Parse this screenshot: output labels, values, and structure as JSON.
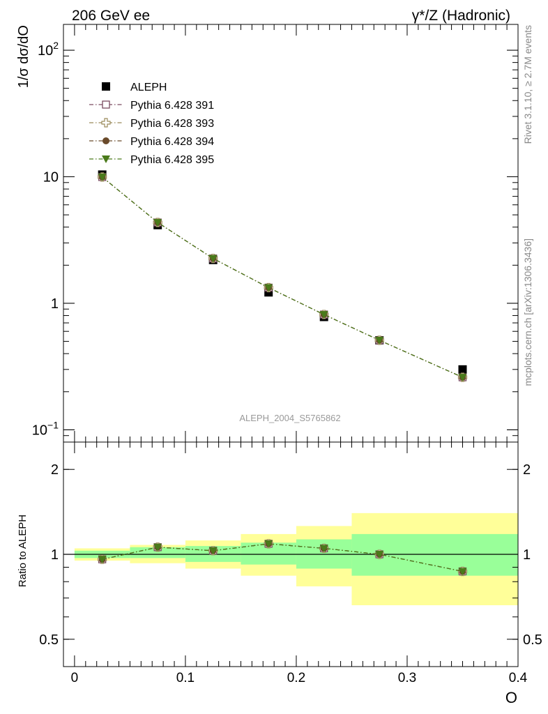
{
  "header": {
    "left": "206 GeV ee",
    "right": "γ*/Z (Hadronic)"
  },
  "side_texts": {
    "rivet": "Rivet 3.1.10, ≥ 2.7M events",
    "mcplots": "mcplots.cern.ch [arXiv:1306.3436]"
  },
  "watermark": "ALEPH_2004_S5765862",
  "colors": {
    "aleph": "#000000",
    "p391": "#7a4a5f",
    "p393": "#9a8a5a",
    "p394": "#6a4a2a",
    "p395": "#4a7a1a",
    "band_inner": "#99ff99",
    "band_outer": "#ffff99"
  },
  "chart_data": [
    {
      "type": "scatter",
      "title": "",
      "ylabel": "1/σ  dσ/dO",
      "xlabel": "",
      "yscale": "log",
      "ylim": [
        0.08,
        160
      ],
      "xlim": [
        -0.01,
        0.4
      ],
      "y_ticks": [
        {
          "value": 0.1,
          "base": "10",
          "exp": "−1"
        },
        {
          "value": 1,
          "label": "1"
        },
        {
          "value": 10,
          "label": "10"
        },
        {
          "value": 100,
          "base": "10",
          "exp": "2"
        }
      ],
      "legend_position": "top-left",
      "series": [
        {
          "name": "ALEPH",
          "marker": "square",
          "x": [
            0.025,
            0.075,
            0.125,
            0.175,
            0.225,
            0.275,
            0.35
          ],
          "y": [
            10.4,
            4.15,
            2.2,
            1.22,
            0.78,
            0.51,
            0.3
          ]
        },
        {
          "name": "Pythia 6.428 391",
          "marker": "open-square",
          "x": [
            0.025,
            0.075,
            0.125,
            0.175,
            0.225,
            0.275,
            0.35
          ],
          "y": [
            9.95,
            4.35,
            2.26,
            1.33,
            0.815,
            0.51,
            0.26
          ]
        },
        {
          "name": "Pythia 6.428 393",
          "marker": "open-cross",
          "x": [
            0.025,
            0.075,
            0.125,
            0.175,
            0.225,
            0.275,
            0.35
          ],
          "y": [
            9.95,
            4.35,
            2.26,
            1.33,
            0.815,
            0.51,
            0.26
          ]
        },
        {
          "name": "Pythia 6.428 394",
          "marker": "circle",
          "x": [
            0.025,
            0.075,
            0.125,
            0.175,
            0.225,
            0.275,
            0.35
          ],
          "y": [
            9.95,
            4.35,
            2.26,
            1.33,
            0.815,
            0.51,
            0.26
          ]
        },
        {
          "name": "Pythia 6.428 395",
          "marker": "triangle-down",
          "x": [
            0.025,
            0.075,
            0.125,
            0.175,
            0.225,
            0.275,
            0.35
          ],
          "y": [
            9.95,
            4.35,
            2.26,
            1.33,
            0.815,
            0.51,
            0.26
          ]
        }
      ]
    },
    {
      "type": "scatter",
      "title": "",
      "ylabel": "Ratio to ALEPH",
      "xlabel": "O",
      "yscale": "log",
      "ylim": [
        0.4,
        2.5
      ],
      "xlim": [
        -0.01,
        0.4
      ],
      "x_ticks": [
        "0",
        "0.1",
        "0.2",
        "0.3",
        "0.4"
      ],
      "x_tick_values": [
        0,
        0.1,
        0.2,
        0.3,
        0.4
      ],
      "y_ticks": [
        {
          "value": 0.5,
          "label": "0.5"
        },
        {
          "value": 1,
          "label": "1"
        },
        {
          "value": 2,
          "label": "2"
        }
      ],
      "bands": [
        {
          "x0": 0.0,
          "x1": 0.05,
          "inner": [
            0.97,
            1.03
          ],
          "outer": [
            0.95,
            1.05
          ]
        },
        {
          "x0": 0.05,
          "x1": 0.1,
          "inner": [
            0.97,
            1.06
          ],
          "outer": [
            0.93,
            1.08
          ]
        },
        {
          "x0": 0.1,
          "x1": 0.15,
          "inner": [
            0.94,
            1.07
          ],
          "outer": [
            0.89,
            1.12
          ]
        },
        {
          "x0": 0.15,
          "x1": 0.2,
          "inner": [
            0.92,
            1.1
          ],
          "outer": [
            0.84,
            1.18
          ]
        },
        {
          "x0": 0.2,
          "x1": 0.25,
          "inner": [
            0.89,
            1.13
          ],
          "outer": [
            0.77,
            1.26
          ]
        },
        {
          "x0": 0.25,
          "x1": 0.4,
          "inner": [
            0.84,
            1.18
          ],
          "outer": [
            0.66,
            1.4
          ]
        }
      ],
      "series": [
        {
          "name": "Pythia 6.428 391",
          "marker": "open-square",
          "x": [
            0.025,
            0.075,
            0.125,
            0.175,
            0.225,
            0.275,
            0.35
          ],
          "y": [
            0.96,
            1.06,
            1.03,
            1.09,
            1.05,
            1.0,
            0.87
          ]
        },
        {
          "name": "Pythia 6.428 393",
          "marker": "open-cross",
          "x": [
            0.025,
            0.075,
            0.125,
            0.175,
            0.225,
            0.275,
            0.35
          ],
          "y": [
            0.96,
            1.06,
            1.03,
            1.09,
            1.05,
            1.0,
            0.87
          ]
        },
        {
          "name": "Pythia 6.428 394",
          "marker": "circle",
          "x": [
            0.025,
            0.075,
            0.125,
            0.175,
            0.225,
            0.275,
            0.35
          ],
          "y": [
            0.96,
            1.06,
            1.03,
            1.09,
            1.05,
            1.0,
            0.87
          ]
        },
        {
          "name": "Pythia 6.428 395",
          "marker": "triangle-down",
          "x": [
            0.025,
            0.075,
            0.125,
            0.175,
            0.225,
            0.275,
            0.35
          ],
          "y": [
            0.96,
            1.06,
            1.03,
            1.09,
            1.05,
            1.0,
            0.87
          ]
        }
      ]
    }
  ]
}
